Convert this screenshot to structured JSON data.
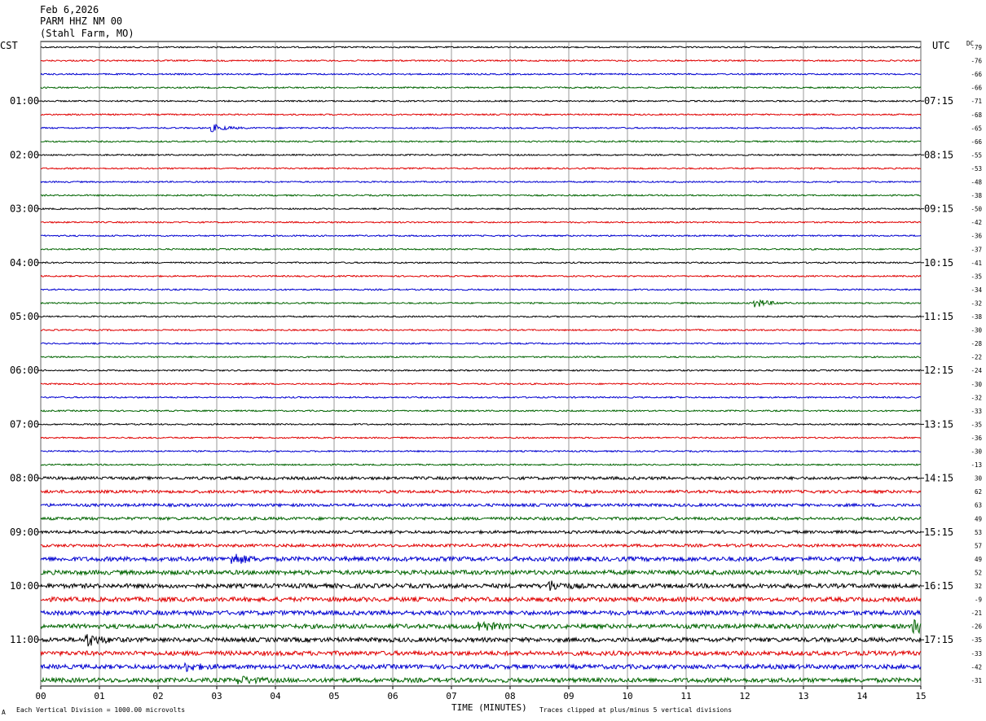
{
  "header": {
    "date": "Feb 6,2026",
    "station": "PARM HHZ NM 00",
    "location": "(Stahl Farm, MO)"
  },
  "left_timezone": "CST",
  "right_timezone": "UTC",
  "dc_header": "DC",
  "footer": {
    "scale_note": "Each Vertical Division = 1000.00 microvolts",
    "xlabel": "TIME (MINUTES)",
    "clip_note": "Traces clipped at plus/minus 5 vertical divisions",
    "corner_mark": "A"
  },
  "colors": {
    "trace_cycle": [
      "#000000",
      "#e00000",
      "#0000d0",
      "#006400"
    ],
    "grid": "#808080"
  },
  "chart_data": {
    "type": "line",
    "title": "PARM HHZ NM 00",
    "xlabel": "TIME (MINUTES)",
    "xlim": [
      0,
      15
    ],
    "x_ticks": [
      "00",
      "01",
      "02",
      "03",
      "04",
      "05",
      "06",
      "07",
      "08",
      "09",
      "10",
      "11",
      "12",
      "13",
      "14",
      "15"
    ],
    "left_hour_labels": [
      "01:00",
      "02:00",
      "03:00",
      "04:00",
      "05:00",
      "06:00",
      "07:00",
      "08:00",
      "09:00",
      "10:00",
      "11:00"
    ],
    "right_hour_labels": [
      "07:15",
      "08:15",
      "09:15",
      "10:15",
      "11:15",
      "12:15",
      "13:15",
      "14:15",
      "15:15",
      "16:15",
      "17:15"
    ],
    "dc_offsets": [
      "-79",
      "-76",
      "-66",
      "-66",
      "-71",
      "-68",
      "-65",
      "-66",
      "-55",
      "-53",
      "-48",
      "-38",
      "-50",
      "-42",
      "-36",
      "-37",
      "-41",
      "-35",
      "-34",
      "-32",
      "-38",
      "-30",
      "-28",
      "-22",
      "-24",
      "-30",
      "-32",
      "-33",
      "-35",
      "-36",
      "-30",
      "-13",
      "30",
      "62",
      "63",
      "49",
      "53",
      "57",
      "49",
      "52",
      "32",
      "-9",
      "-21",
      "-26",
      "-35",
      "-33",
      "-42",
      "-31"
    ],
    "trace_noise": [
      1,
      1,
      1,
      1,
      1,
      1,
      1,
      1,
      1,
      1,
      1,
      1,
      1,
      1,
      1,
      1,
      1,
      1,
      1,
      1,
      1,
      1,
      1,
      1,
      1,
      1,
      1,
      1,
      1,
      1,
      1,
      1,
      2,
      2,
      2,
      2,
      2,
      2,
      3,
      3,
      3,
      3,
      3,
      3,
      3,
      3,
      3,
      3
    ],
    "events": [
      {
        "trace": 6,
        "minute": 2.95,
        "amplitude": 4
      },
      {
        "trace": 19,
        "minute": 12.2,
        "amplitude": 5
      },
      {
        "trace": 38,
        "minute": 3.3,
        "amplitude": 6
      },
      {
        "trace": 40,
        "minute": 8.7,
        "amplitude": 5
      },
      {
        "trace": 43,
        "minute": 7.5,
        "amplitude": 6
      },
      {
        "trace": 43,
        "minute": 14.9,
        "amplitude": 8
      },
      {
        "trace": 44,
        "minute": 0.8,
        "amplitude": 7
      },
      {
        "trace": 46,
        "minute": 2.5,
        "amplitude": 4
      },
      {
        "trace": 47,
        "minute": 3.4,
        "amplitude": 4
      }
    ]
  }
}
